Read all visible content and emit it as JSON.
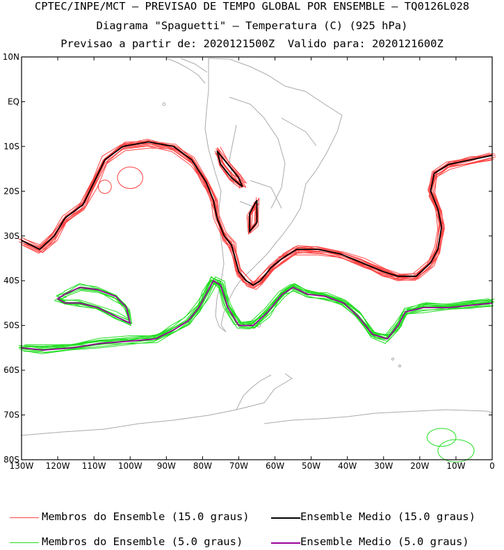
{
  "header": {
    "line1": "CPTEC/INPE/MCT – PREVISAO DE TEMPO GLOBAL POR ENSEMBLE – TQ0126L028",
    "line2": "Diagrama \"Spaguetti\" – Temperatura (C) (925 hPa)",
    "line3": "Previsao a partir de: 2020121500Z  Valido para: 2020121600Z"
  },
  "legend": {
    "members_15": "Membros do Ensemble (15.0 graus)",
    "mean_15": "Ensemble Medio (15.0 graus)",
    "members_5": "Membros do Ensemble (5.0 graus)",
    "mean_5": "Ensemble Medio (5.0 graus)"
  },
  "chart_data": {
    "type": "line",
    "title": "Diagrama \"Spaguetti\" – Temperatura (C) (925 hPa)",
    "x_ticks": [
      "130W",
      "120W",
      "110W",
      "100W",
      "90W",
      "80W",
      "70W",
      "60W",
      "50W",
      "40W",
      "30W",
      "20W",
      "10W",
      "0"
    ],
    "y_ticks": [
      "10N",
      "EQ",
      "10S",
      "20S",
      "30S",
      "40S",
      "50S",
      "60S",
      "70S",
      "80S"
    ],
    "xlim": [
      -130,
      0
    ],
    "ylim": [
      -80,
      10
    ],
    "grid": false,
    "colors": {
      "members_15": "#ff4444",
      "mean_15": "#000000",
      "members_5": "#22dd22",
      "mean_5": "#990099",
      "land": "#aaaaaa"
    },
    "series": [
      {
        "name": "Ensemble Medio (15.0 graus)",
        "points": [
          [
            -130,
            -31
          ],
          [
            -125,
            -33
          ],
          [
            -121,
            -30
          ],
          [
            -118,
            -26
          ],
          [
            -113,
            -23
          ],
          [
            -110,
            -18
          ],
          [
            -107,
            -13
          ],
          [
            -102,
            -10
          ],
          [
            -95,
            -9
          ],
          [
            -88,
            -10
          ],
          [
            -83,
            -13
          ],
          [
            -79,
            -18
          ],
          [
            -77,
            -22
          ],
          [
            -76,
            -26
          ],
          [
            -74,
            -30
          ],
          [
            -72,
            -32
          ],
          [
            -71,
            -35
          ],
          [
            -70,
            -38
          ],
          [
            -68,
            -40
          ],
          [
            -66,
            -41
          ],
          [
            -64,
            -40
          ],
          [
            -61,
            -37
          ],
          [
            -58,
            -35
          ],
          [
            -54,
            -33
          ],
          [
            -48,
            -33
          ],
          [
            -42,
            -34
          ],
          [
            -36,
            -36
          ],
          [
            -30,
            -38
          ],
          [
            -26,
            -39
          ],
          [
            -21,
            -39
          ],
          [
            -17,
            -36
          ],
          [
            -15,
            -33
          ],
          [
            -14,
            -28
          ],
          [
            -15,
            -24
          ],
          [
            -17,
            -20
          ],
          [
            -16,
            -16
          ],
          [
            -12,
            -14
          ],
          [
            -6,
            -13
          ],
          [
            0,
            -12
          ]
        ]
      },
      {
        "name": "Ensemble Medio (15.0 graus)",
        "points": [
          [
            -76,
            -11
          ],
          [
            -73,
            -14
          ],
          [
            -70,
            -17
          ],
          [
            -69,
            -19
          ],
          [
            -72,
            -17
          ],
          [
            -75,
            -14
          ],
          [
            -76,
            -11
          ]
        ]
      },
      {
        "name": "Ensemble Medio (15.0 graus)",
        "points": [
          [
            -65,
            -22
          ],
          [
            -65,
            -27
          ],
          [
            -67,
            -29
          ],
          [
            -67,
            -25
          ],
          [
            -65,
            -22
          ]
        ]
      },
      {
        "name": "Ensemble Medio (5.0 graus)",
        "points": [
          [
            -130,
            -55
          ],
          [
            -124,
            -55.5
          ],
          [
            -116,
            -55
          ],
          [
            -108,
            -54
          ],
          [
            -100,
            -53.5
          ],
          [
            -93,
            -53
          ],
          [
            -88,
            -51
          ],
          [
            -84,
            -49
          ],
          [
            -81,
            -46
          ],
          [
            -79,
            -43
          ],
          [
            -77,
            -40
          ],
          [
            -75,
            -41
          ],
          [
            -73,
            -46
          ],
          [
            -70,
            -50
          ],
          [
            -66,
            -50
          ],
          [
            -62,
            -47
          ],
          [
            -58,
            -43
          ],
          [
            -55,
            -41.5
          ],
          [
            -51,
            -43
          ],
          [
            -46,
            -43.5
          ],
          [
            -41,
            -45
          ],
          [
            -37,
            -48
          ],
          [
            -33,
            -52
          ],
          [
            -29,
            -53
          ],
          [
            -26,
            -50
          ],
          [
            -24,
            -47
          ],
          [
            -19,
            -46
          ],
          [
            -12,
            -46
          ],
          [
            -6,
            -45.5
          ],
          [
            0,
            -45
          ]
        ]
      },
      {
        "name": "Ensemble Medio (5.0 graus)",
        "points": [
          [
            -118,
            -43
          ],
          [
            -114,
            -41.5
          ],
          [
            -109,
            -42
          ],
          [
            -104,
            -43.5
          ],
          [
            -101,
            -46
          ],
          [
            -100,
            -49.5
          ],
          [
            -104,
            -48
          ],
          [
            -109,
            -46
          ],
          [
            -114,
            -45
          ],
          [
            -118,
            -45
          ],
          [
            -120,
            -44
          ],
          [
            -118,
            -43
          ]
        ]
      }
    ]
  }
}
